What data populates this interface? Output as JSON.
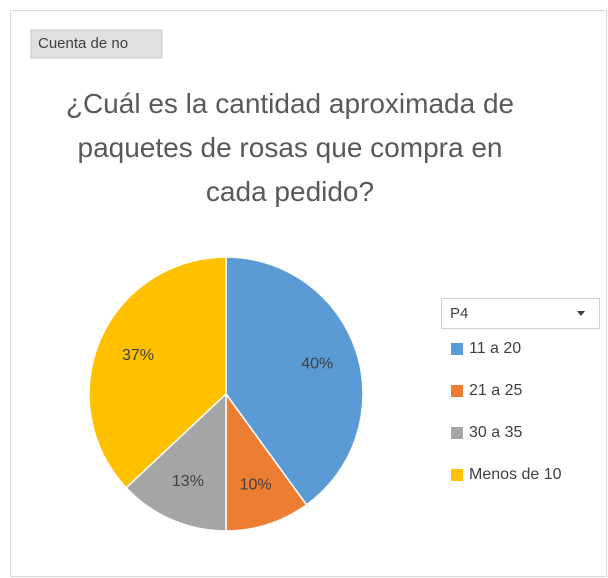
{
  "chart_data": {
    "type": "pie",
    "field_button": "Cuenta de no",
    "title": "¿Cuál es la cantidad aproximada de paquetes de rosas que compra en cada pedido?",
    "legend_title": "P4",
    "categories": [
      "11 a 20",
      "21 a 25",
      "30 a 35",
      "Menos de 10"
    ],
    "values": [
      40,
      10,
      13,
      37
    ],
    "value_labels": [
      "40%",
      "10%",
      "13%",
      "37%"
    ],
    "colors": [
      "#5b9bd5",
      "#ed7d31",
      "#a5a5a5",
      "#ffc000"
    ],
    "legend": "right"
  }
}
